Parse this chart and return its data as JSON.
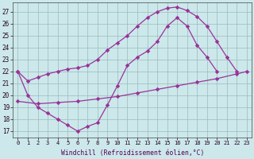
{
  "bg_color": "#cce8ea",
  "grid_color": "#99bbbd",
  "line_color": "#993399",
  "xlabel": "Windchill (Refroidissement éolien,°C)",
  "line1_x": [
    0,
    1,
    2,
    3,
    4,
    5,
    6,
    7,
    8,
    9,
    10,
    11,
    12,
    13,
    14,
    15,
    16,
    17,
    18,
    19,
    20,
    21,
    22
  ],
  "line1_y": [
    22.0,
    21.2,
    21.5,
    21.8,
    22.0,
    22.2,
    22.3,
    22.5,
    23.0,
    23.8,
    24.4,
    25.0,
    25.8,
    26.5,
    27.0,
    27.3,
    27.4,
    27.1,
    26.6,
    25.8,
    24.5,
    23.2,
    22.0
  ],
  "line2_x": [
    0,
    1,
    2,
    3,
    4,
    5,
    6,
    7,
    8,
    9,
    10,
    11,
    12,
    13,
    14,
    15,
    16,
    17,
    18,
    19,
    20,
    21,
    22
  ],
  "line2_y": [
    22.0,
    20.0,
    19.0,
    18.5,
    18.0,
    17.5,
    17.0,
    17.4,
    17.7,
    19.2,
    20.8,
    22.5,
    23.2,
    23.7,
    24.5,
    25.8,
    26.5,
    25.8,
    24.2,
    23.2,
    22.0,
    null,
    null
  ],
  "line3_x": [
    0,
    2,
    4,
    6,
    8,
    10,
    12,
    14,
    16,
    18,
    20,
    22,
    23
  ],
  "line3_y": [
    19.5,
    19.3,
    19.4,
    19.5,
    19.7,
    19.9,
    20.2,
    20.5,
    20.8,
    21.1,
    21.4,
    21.8,
    22.0
  ],
  "yticks": [
    17,
    18,
    19,
    20,
    21,
    22,
    23,
    24,
    25,
    26,
    27
  ],
  "xticks": [
    0,
    1,
    2,
    3,
    4,
    5,
    6,
    7,
    8,
    9,
    10,
    11,
    12,
    13,
    14,
    15,
    16,
    17,
    18,
    19,
    20,
    21,
    22,
    23
  ],
  "xlim": [
    -0.5,
    23.5
  ],
  "ylim": [
    16.5,
    27.8
  ]
}
